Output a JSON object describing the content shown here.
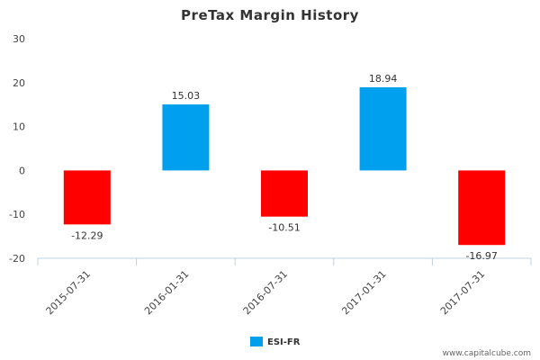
{
  "chart_data": {
    "type": "bar",
    "title": "PreTax Margin History",
    "categories": [
      "2015-07-31",
      "2016-01-31",
      "2016-07-31",
      "2017-01-31",
      "2017-07-31"
    ],
    "series": [
      {
        "name": "ESI-FR",
        "values": [
          -12.29,
          15.03,
          -10.51,
          18.94,
          -16.97
        ],
        "value_labels": [
          "-12.29",
          "15.03",
          "-10.51",
          "18.94",
          "-16.97"
        ]
      }
    ],
    "yticks": [
      "30",
      "20",
      "10",
      "0",
      "-10",
      "-20"
    ],
    "ylim": [
      -20,
      30
    ],
    "colors": {
      "positive": "#00a0ee",
      "negative": "#ff0000",
      "axis": "#c0d0e0",
      "grid": "#e6e6e6"
    },
    "grid": false,
    "legend_position": "bottom-center",
    "credit": "www.capitalcube.com"
  }
}
